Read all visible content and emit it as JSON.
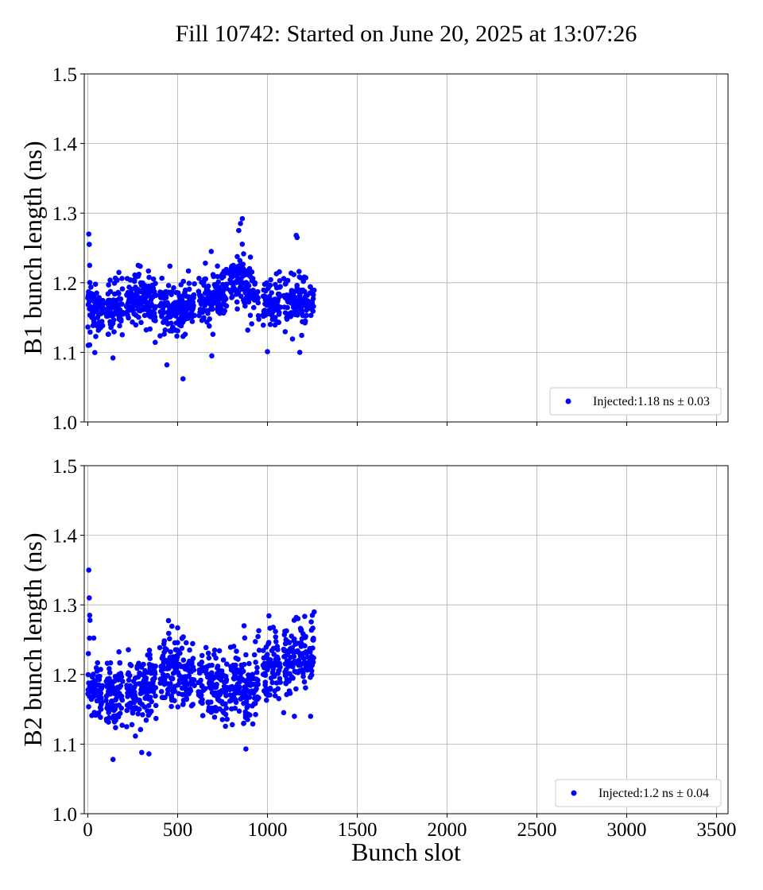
{
  "title": "Fill 10742: Started on June 20, 2025 at 13:07:26",
  "colors": {
    "points": "#0000ff",
    "grid": "#b0b0b0",
    "axes": "#000000"
  },
  "chart_data": [
    {
      "type": "scatter",
      "name": "top",
      "ylabel": "B1 bunch length (ns)",
      "xlabel": "",
      "xlim": [
        -20,
        3564
      ],
      "ylim": [
        1.0,
        1.5
      ],
      "xticks": [
        0,
        500,
        1000,
        1500,
        2000,
        2500,
        3000,
        3500
      ],
      "xtick_labels_shown": false,
      "yticks": [
        "1.0",
        "1.1",
        "1.2",
        "1.3",
        "1.4",
        "1.5"
      ],
      "grid": true,
      "legend_position": "lower-right",
      "series": [
        {
          "legend": "Injected:1.18 ns ± 0.03",
          "mean": 1.18,
          "std": 0.03,
          "x_range": [
            0,
            1260
          ],
          "band_centers": [
            [
              0,
              1.17
            ],
            [
              50,
              1.165
            ],
            [
              100,
              1.16
            ],
            [
              150,
              1.165
            ],
            [
              200,
              1.17
            ],
            [
              300,
              1.175
            ],
            [
              400,
              1.165
            ],
            [
              500,
              1.16
            ],
            [
              550,
              1.165
            ],
            [
              600,
              1.175
            ],
            [
              700,
              1.175
            ],
            [
              800,
              1.2
            ],
            [
              860,
              1.21
            ],
            [
              900,
              1.195
            ],
            [
              950,
              1.17
            ],
            [
              1000,
              1.165
            ],
            [
              1100,
              1.175
            ],
            [
              1150,
              1.18
            ],
            [
              1200,
              1.17
            ],
            [
              1260,
              1.175
            ]
          ],
          "notable_points": [
            [
              5,
              1.27
            ],
            [
              8,
              1.255
            ],
            [
              10,
              1.225
            ],
            [
              2,
              1.11
            ],
            [
              140,
              1.092
            ],
            [
              440,
              1.082
            ],
            [
              530,
              1.062
            ],
            [
              690,
              1.095
            ],
            [
              840,
              1.275
            ],
            [
              860,
              1.292
            ],
            [
              850,
              1.285
            ],
            [
              1000,
              1.101
            ],
            [
              1160,
              1.268
            ],
            [
              1165,
              1.265
            ],
            [
              1180,
              1.1
            ],
            [
              890,
              1.132
            ],
            [
              280,
              1.225
            ]
          ]
        }
      ]
    },
    {
      "type": "scatter",
      "name": "bottom",
      "ylabel": "B2 bunch length (ns)",
      "xlabel": "Bunch slot",
      "xlim": [
        -20,
        3564
      ],
      "ylim": [
        1.0,
        1.5
      ],
      "xticks": [
        0,
        500,
        1000,
        1500,
        2000,
        2500,
        3000,
        3500
      ],
      "xtick_labels": [
        "0",
        "500",
        "1000",
        "1500",
        "2000",
        "2500",
        "3000",
        "3500"
      ],
      "yticks": [
        "1.0",
        "1.1",
        "1.2",
        "1.3",
        "1.4",
        "1.5"
      ],
      "grid": true,
      "legend_position": "lower-right",
      "series": [
        {
          "legend": "Injected:1.2 ns ± 0.04",
          "mean": 1.2,
          "std": 0.04,
          "x_range": [
            0,
            1260
          ],
          "band_centers": [
            [
              0,
              1.19
            ],
            [
              60,
              1.175
            ],
            [
              100,
              1.175
            ],
            [
              150,
              1.17
            ],
            [
              200,
              1.175
            ],
            [
              300,
              1.175
            ],
            [
              400,
              1.2
            ],
            [
              500,
              1.205
            ],
            [
              600,
              1.19
            ],
            [
              700,
              1.18
            ],
            [
              800,
              1.185
            ],
            [
              900,
              1.18
            ],
            [
              1000,
              1.21
            ],
            [
              1100,
              1.215
            ],
            [
              1200,
              1.225
            ],
            [
              1260,
              1.23
            ]
          ],
          "notable_points": [
            [
              5,
              1.35
            ],
            [
              8,
              1.31
            ],
            [
              10,
              1.285
            ],
            [
              12,
              1.278
            ],
            [
              3,
              1.23
            ],
            [
              140,
              1.078
            ],
            [
              300,
              1.088
            ],
            [
              340,
              1.086
            ],
            [
              880,
              1.093
            ],
            [
              500,
              1.267
            ],
            [
              870,
              1.27
            ],
            [
              1160,
              1.282
            ],
            [
              1260,
              1.29
            ],
            [
              1250,
              1.285
            ],
            [
              1240,
              1.14
            ],
            [
              1150,
              1.14
            ]
          ]
        }
      ]
    }
  ]
}
